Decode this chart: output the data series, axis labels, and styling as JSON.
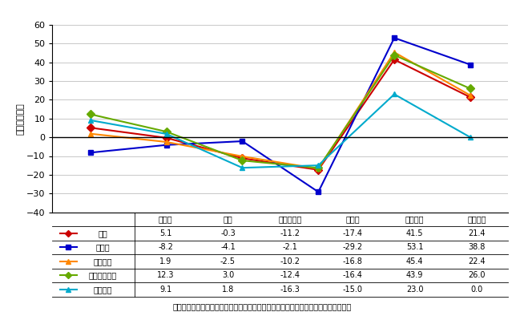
{
  "categories": [
    "テレビ",
    "新聞",
    "雑誌・書籍",
    "ラジオ",
    "パソコン",
    "携帯電話"
  ],
  "series": [
    {
      "label": "全体",
      "values": [
        5.1,
        -0.3,
        -11.2,
        -17.4,
        41.5,
        21.4
      ],
      "color": "#cc0000",
      "marker": "D",
      "markersize": 5
    },
    {
      "label": "若年層",
      "values": [
        -8.2,
        -4.1,
        -2.1,
        -29.2,
        53.1,
        38.8
      ],
      "color": "#0000cc",
      "marker": "s",
      "markersize": 5
    },
    {
      "label": "勤労者層",
      "values": [
        1.9,
        -2.5,
        -10.2,
        -16.8,
        45.4,
        22.4
      ],
      "color": "#ff8800",
      "marker": "^",
      "markersize": 5
    },
    {
      "label": "家庭生活者層",
      "values": [
        12.3,
        3.0,
        -12.4,
        -16.4,
        43.9,
        26.0
      ],
      "color": "#66aa00",
      "marker": "D",
      "markersize": 5
    },
    {
      "label": "高齢者層",
      "values": [
        9.1,
        1.8,
        -16.3,
        -15.0,
        23.0,
        0.0
      ],
      "color": "#00aacc",
      "marker": "^",
      "markersize": 5
    }
  ],
  "ylabel": "（ポイント）",
  "ylim": [
    -40,
    60
  ],
  "yticks": [
    -40,
    -30,
    -20,
    -10,
    0,
    10,
    20,
    30,
    40,
    50,
    60
  ],
  "table_rows": [
    [
      "全体",
      "5.1",
      "-0.3",
      "-11.2",
      "-17.4",
      "41.5",
      "21.4"
    ],
    [
      "若年層",
      "-8.2",
      "-4.1",
      "-2.1",
      "-29.2",
      "53.1",
      "38.8"
    ],
    [
      "勤労者層",
      "1.9",
      "-2.5",
      "-10.2",
      "-16.8",
      "45.4",
      "22.4"
    ],
    [
      "家庭生活者層",
      "12.3",
      "3.0",
      "-12.4",
      "-16.4",
      "43.9",
      "26.0"
    ],
    [
      "高齢者層",
      "9.1",
      "1.8",
      "-16.3",
      "-15.0",
      "23.0",
      "0.0"
    ]
  ],
  "source_text": "（出典）「ユビキタスネット社会における情報接触及び消費行動に関する調査研究」",
  "legend_colors": [
    "#cc0000",
    "#0000cc",
    "#ff8800",
    "#66aa00",
    "#00aacc"
  ],
  "legend_markers": [
    "D",
    "s",
    "^",
    "D",
    "^"
  ]
}
